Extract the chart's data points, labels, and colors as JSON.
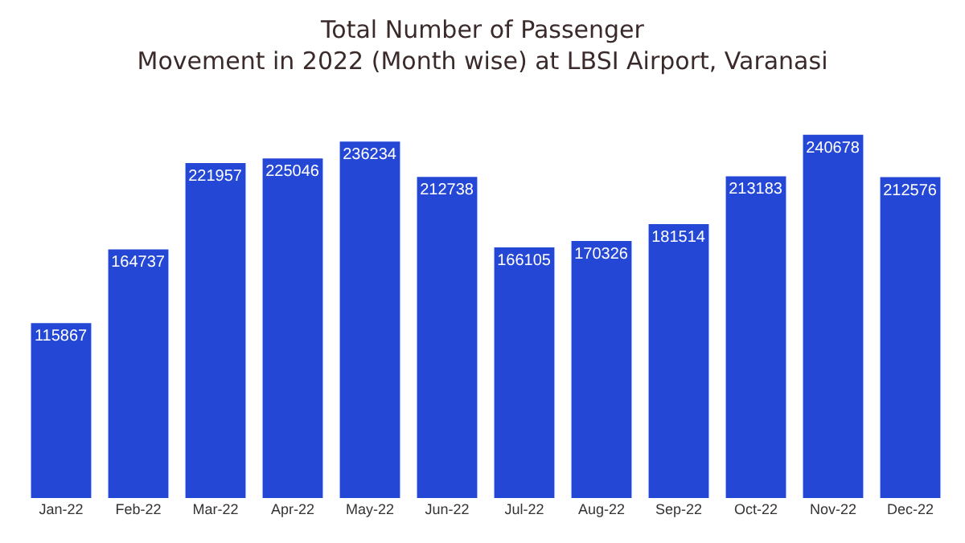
{
  "chart_data": {
    "type": "bar",
    "title": "Total Number of Passenger\nMovement in 2022 (Month wise) at LBSI Airport, Varanasi",
    "categories": [
      "Jan-22",
      "Feb-22",
      "Mar-22",
      "Apr-22",
      "May-22",
      "Jun-22",
      "Jul-22",
      "Aug-22",
      "Sep-22",
      "Oct-22",
      "Nov-22",
      "Dec-22"
    ],
    "values": [
      115867,
      164737,
      221957,
      225046,
      236234,
      212738,
      166105,
      170326,
      181514,
      213183,
      240678,
      212576
    ],
    "color": "#2447d6",
    "data_labels": true,
    "grid": false
  }
}
